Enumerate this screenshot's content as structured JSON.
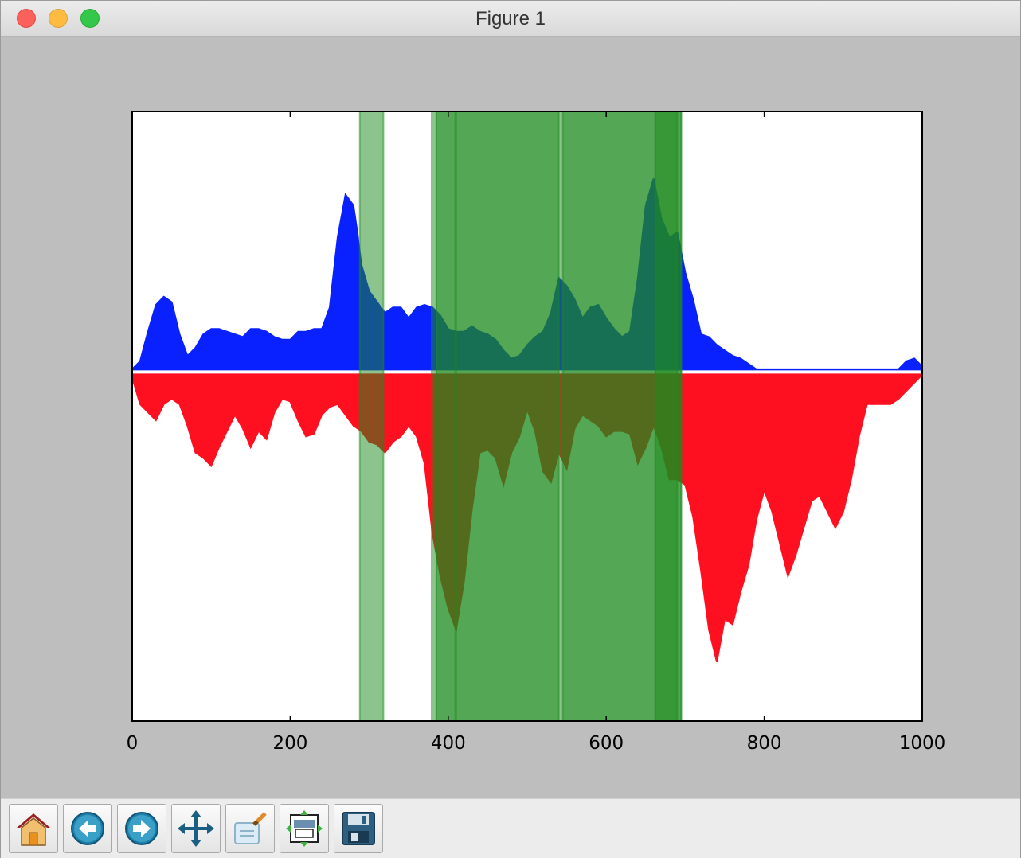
{
  "window": {
    "title": "Figure 1"
  },
  "toolbar": {
    "buttons": [
      {
        "name": "home-button",
        "icon": "home-icon"
      },
      {
        "name": "back-button",
        "icon": "back-arrow-icon"
      },
      {
        "name": "forward-button",
        "icon": "forward-arrow-icon"
      },
      {
        "name": "pan-button",
        "icon": "pan-move-icon"
      },
      {
        "name": "zoom-button",
        "icon": "zoom-rect-icon"
      },
      {
        "name": "subplots-button",
        "icon": "configure-subplots-icon"
      },
      {
        "name": "save-button",
        "icon": "save-floppy-icon"
      }
    ]
  },
  "chart_data": {
    "type": "area",
    "title": "",
    "xlabel": "",
    "ylabel": "",
    "xlim": [
      0,
      1000
    ],
    "ylim": [
      -1.3,
      0.97
    ],
    "xticks": [
      0,
      200,
      400,
      600,
      800,
      1000
    ],
    "xtick_labels": [
      "0",
      "200",
      "400",
      "600",
      "800",
      "1000"
    ],
    "grid": false,
    "series": [
      {
        "color": "#0a21ff",
        "x": [
          0,
          10,
          20,
          30,
          40,
          50,
          60,
          70,
          80,
          90,
          100,
          110,
          120,
          130,
          140,
          150,
          160,
          170,
          180,
          190,
          200,
          210,
          220,
          230,
          240,
          250,
          260,
          270,
          280,
          285,
          290,
          300,
          310,
          320,
          330,
          340,
          350,
          360,
          370,
          380,
          390,
          400,
          410,
          420,
          430,
          440,
          450,
          460,
          470,
          480,
          490,
          500,
          510,
          520,
          530,
          540,
          550,
          560,
          570,
          580,
          590,
          600,
          610,
          620,
          630,
          640,
          650,
          660,
          670,
          680,
          690,
          700,
          710,
          720,
          730,
          740,
          750,
          760,
          770,
          780,
          790,
          800,
          810,
          820,
          830,
          840,
          850,
          860,
          870,
          880,
          890,
          900,
          910,
          920,
          930,
          940,
          950,
          960,
          970,
          980,
          990,
          1000
        ],
        "values": [
          0.01,
          0.04,
          0.15,
          0.25,
          0.28,
          0.26,
          0.14,
          0.06,
          0.09,
          0.14,
          0.16,
          0.16,
          0.15,
          0.14,
          0.13,
          0.16,
          0.16,
          0.15,
          0.13,
          0.12,
          0.12,
          0.15,
          0.15,
          0.16,
          0.16,
          0.24,
          0.5,
          0.66,
          0.62,
          0.52,
          0.4,
          0.3,
          0.26,
          0.22,
          0.24,
          0.24,
          0.2,
          0.24,
          0.25,
          0.24,
          0.21,
          0.16,
          0.15,
          0.15,
          0.17,
          0.15,
          0.14,
          0.12,
          0.08,
          0.05,
          0.06,
          0.1,
          0.13,
          0.15,
          0.22,
          0.35,
          0.32,
          0.27,
          0.2,
          0.24,
          0.25,
          0.2,
          0.16,
          0.13,
          0.15,
          0.35,
          0.62,
          0.72,
          0.57,
          0.5,
          0.52,
          0.37,
          0.27,
          0.14,
          0.13,
          0.1,
          0.08,
          0.06,
          0.05,
          0.03,
          0.01,
          0.01,
          0.01,
          0.01,
          0.01,
          0.01,
          0.01,
          0.01,
          0.01,
          0.01,
          0.01,
          0.01,
          0.01,
          0.01,
          0.01,
          0.01,
          0.01,
          0.01,
          0.01,
          0.04,
          0.05,
          0.02
        ]
      },
      {
        "color": "#ff1020",
        "x": [
          0,
          10,
          20,
          30,
          40,
          50,
          60,
          70,
          80,
          90,
          100,
          110,
          120,
          130,
          140,
          150,
          160,
          170,
          180,
          190,
          200,
          210,
          220,
          230,
          240,
          250,
          260,
          270,
          280,
          290,
          300,
          310,
          320,
          330,
          340,
          350,
          360,
          370,
          380,
          390,
          400,
          410,
          420,
          430,
          440,
          450,
          460,
          470,
          480,
          490,
          500,
          510,
          520,
          530,
          540,
          550,
          560,
          570,
          580,
          590,
          600,
          610,
          620,
          630,
          640,
          650,
          660,
          670,
          680,
          690,
          700,
          710,
          720,
          730,
          740,
          750,
          760,
          770,
          780,
          790,
          800,
          810,
          820,
          830,
          840,
          850,
          860,
          870,
          880,
          890,
          900,
          910,
          920,
          930,
          940,
          950,
          960,
          970,
          980,
          990,
          1000
        ],
        "values": [
          -0.02,
          -0.12,
          -0.15,
          -0.18,
          -0.12,
          -0.1,
          -0.12,
          -0.2,
          -0.3,
          -0.32,
          -0.35,
          -0.28,
          -0.22,
          -0.16,
          -0.21,
          -0.28,
          -0.22,
          -0.25,
          -0.15,
          -0.1,
          -0.11,
          -0.18,
          -0.24,
          -0.23,
          -0.16,
          -0.13,
          -0.12,
          -0.16,
          -0.2,
          -0.22,
          -0.26,
          -0.27,
          -0.3,
          -0.26,
          -0.24,
          -0.2,
          -0.24,
          -0.34,
          -0.6,
          -0.76,
          -0.88,
          -0.96,
          -0.78,
          -0.51,
          -0.3,
          -0.29,
          -0.32,
          -0.42,
          -0.3,
          -0.24,
          -0.14,
          -0.22,
          -0.37,
          -0.41,
          -0.3,
          -0.36,
          -0.21,
          -0.16,
          -0.18,
          -0.2,
          -0.24,
          -0.22,
          -0.22,
          -0.23,
          -0.34,
          -0.28,
          -0.2,
          -0.28,
          -0.4,
          -0.4,
          -0.42,
          -0.54,
          -0.74,
          -0.96,
          -1.08,
          -0.92,
          -0.94,
          -0.82,
          -0.72,
          -0.55,
          -0.44,
          -0.52,
          -0.64,
          -0.76,
          -0.68,
          -0.58,
          -0.48,
          -0.46,
          -0.52,
          -0.58,
          -0.52,
          -0.4,
          -0.24,
          -0.12,
          -0.12,
          -0.12,
          -0.12,
          -0.1,
          -0.07,
          -0.04,
          -0.01
        ]
      }
    ],
    "spans": [
      {
        "x0": 288,
        "x1": 318
      },
      {
        "x0": 379,
        "x1": 409
      },
      {
        "x0": 385,
        "x1": 540
      },
      {
        "x0": 410,
        "x1": 695
      },
      {
        "x0": 545,
        "x1": 690
      },
      {
        "x0": 662,
        "x1": 695
      }
    ],
    "span_color": "#1c8a1c"
  }
}
